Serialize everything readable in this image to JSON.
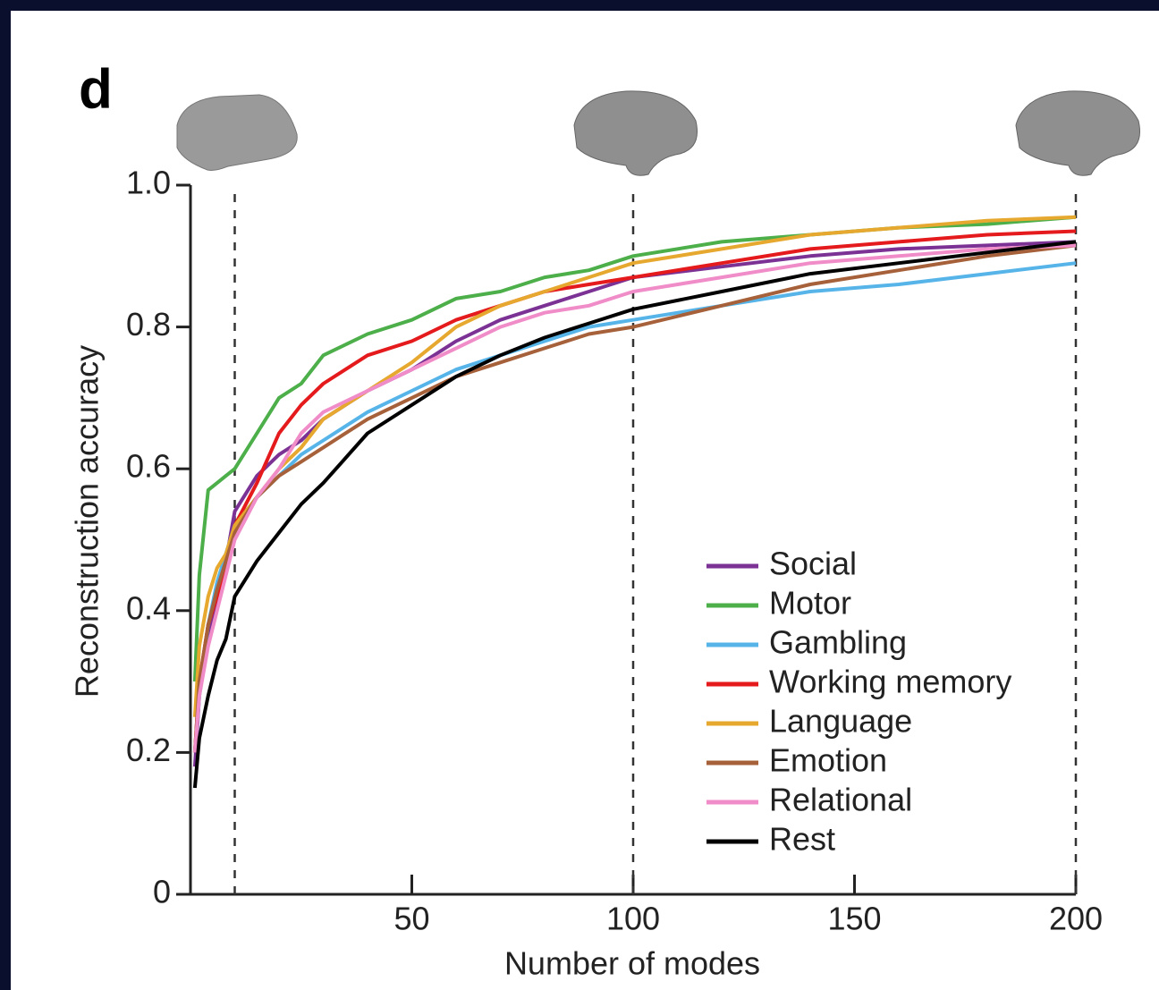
{
  "chart_data": {
    "type": "line",
    "panel_label": "d",
    "xlabel": "Number of modes",
    "ylabel": "Reconstruction accuracy",
    "x": [
      1,
      2,
      4,
      6,
      8,
      10,
      15,
      20,
      25,
      30,
      40,
      50,
      60,
      70,
      80,
      90,
      100,
      120,
      140,
      160,
      180,
      200
    ],
    "series": [
      {
        "name": "Social",
        "color": "#7b3294",
        "values": [
          0.18,
          0.28,
          0.36,
          0.42,
          0.47,
          0.54,
          0.59,
          0.62,
          0.64,
          0.67,
          0.71,
          0.74,
          0.78,
          0.81,
          0.83,
          0.85,
          0.87,
          0.885,
          0.9,
          0.91,
          0.915,
          0.92
        ]
      },
      {
        "name": "Motor",
        "color": "#4daf4a",
        "values": [
          0.3,
          0.45,
          0.57,
          0.58,
          0.59,
          0.6,
          0.65,
          0.7,
          0.72,
          0.76,
          0.79,
          0.81,
          0.84,
          0.85,
          0.87,
          0.88,
          0.9,
          0.92,
          0.93,
          0.94,
          0.945,
          0.955
        ]
      },
      {
        "name": "Gambling",
        "color": "#56b4e9",
        "values": [
          0.2,
          0.28,
          0.38,
          0.44,
          0.48,
          0.52,
          0.56,
          0.59,
          0.62,
          0.64,
          0.68,
          0.71,
          0.74,
          0.76,
          0.78,
          0.8,
          0.81,
          0.83,
          0.85,
          0.86,
          0.875,
          0.89
        ]
      },
      {
        "name": "Working memory",
        "color": "#e41a1c",
        "values": [
          0.2,
          0.3,
          0.38,
          0.42,
          0.46,
          0.52,
          0.58,
          0.65,
          0.69,
          0.72,
          0.76,
          0.78,
          0.81,
          0.83,
          0.85,
          0.86,
          0.87,
          0.89,
          0.91,
          0.92,
          0.93,
          0.935
        ]
      },
      {
        "name": "Language",
        "color": "#e6a82e",
        "values": [
          0.25,
          0.35,
          0.42,
          0.46,
          0.48,
          0.52,
          0.56,
          0.6,
          0.63,
          0.67,
          0.71,
          0.75,
          0.8,
          0.83,
          0.85,
          0.87,
          0.89,
          0.91,
          0.93,
          0.94,
          0.95,
          0.955
        ]
      },
      {
        "name": "Emotion",
        "color": "#a6613a",
        "values": [
          0.2,
          0.3,
          0.38,
          0.43,
          0.47,
          0.51,
          0.56,
          0.59,
          0.61,
          0.63,
          0.67,
          0.7,
          0.73,
          0.75,
          0.77,
          0.79,
          0.8,
          0.83,
          0.86,
          0.88,
          0.9,
          0.915
        ]
      },
      {
        "name": "Relational",
        "color": "#f08cc8",
        "values": [
          0.2,
          0.28,
          0.35,
          0.4,
          0.45,
          0.5,
          0.56,
          0.6,
          0.65,
          0.68,
          0.71,
          0.74,
          0.77,
          0.8,
          0.82,
          0.83,
          0.85,
          0.87,
          0.89,
          0.9,
          0.91,
          0.915
        ]
      },
      {
        "name": "Rest",
        "color": "#000000",
        "values": [
          0.15,
          0.22,
          0.28,
          0.33,
          0.36,
          0.42,
          0.47,
          0.51,
          0.55,
          0.58,
          0.65,
          0.69,
          0.73,
          0.76,
          0.785,
          0.805,
          0.825,
          0.85,
          0.875,
          0.89,
          0.905,
          0.92
        ]
      }
    ],
    "xlim": [
      0,
      200
    ],
    "ylim": [
      0,
      1
    ],
    "xticks": [
      50,
      100,
      150,
      200
    ],
    "yticks": [
      0,
      0.2,
      0.4,
      0.6,
      0.8,
      {
        "value": 1,
        "label": "1.0"
      }
    ],
    "vlines": [
      10,
      100,
      200
    ],
    "legend": "lower right"
  }
}
